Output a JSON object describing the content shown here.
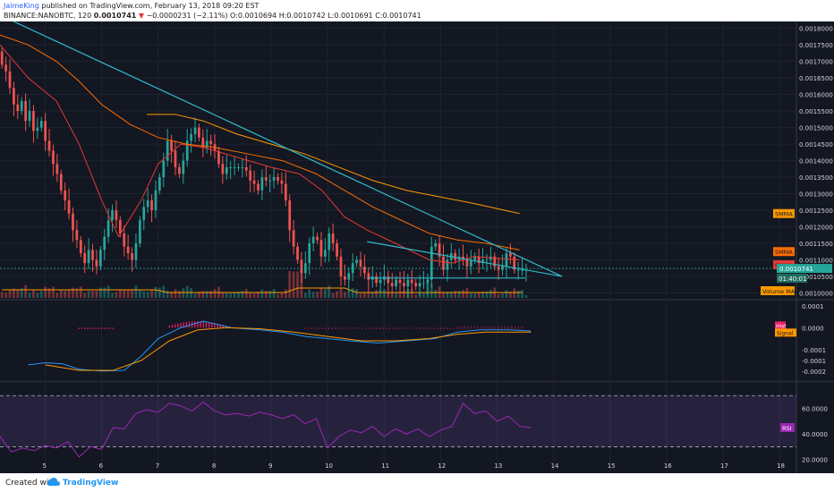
{
  "header": {
    "author": "JaimeKing",
    "published": "published on TradingView.com, February 13, 2018 09:20 EST",
    "symbol": "BINANCE:NANOBTC, 120",
    "last": "0.0010741",
    "arrow": "▼",
    "change": "−0.0000231 (−2.11%)",
    "ohlc_o": "O:0.0010694",
    "ohlc_h": "H:0.0010742",
    "ohlc_l": "L:0.0010691",
    "ohlc_c": "C:0.0010741"
  },
  "footer": {
    "created": "Created with",
    "brand": "TradingView",
    "logo_icon": "cloud-icon"
  },
  "colors": {
    "bg": "#131722",
    "up": "#26a69a",
    "down": "#ef5350",
    "trend": "#31b8c8",
    "smma_fast": "#e53935",
    "smma_mid": "#ff6d00",
    "smma_slow": "#ff9800",
    "macd": "#2196f3",
    "signal": "#ff9800",
    "hist": "#e91e63",
    "rsi": "#9c27b0"
  },
  "chart_data": [
    {
      "type": "candlestick",
      "panel": "price",
      "price_labels": [
        "0.0018000",
        "0.0017500",
        "0.0017000",
        "0.0016500",
        "0.0016000",
        "0.0015500",
        "0.0015000",
        "0.0014500",
        "0.0014000",
        "0.0013500",
        "0.0013000",
        "0.0012500",
        "0.0012000",
        "0.0011500",
        "0.0011000",
        "0.0010500",
        "0.0010000"
      ],
      "x_labels": [
        "5",
        "6",
        "7",
        "8",
        "9",
        "10",
        "11",
        "12",
        "13",
        "14",
        "15",
        "16",
        "17",
        "18"
      ],
      "x_label_pos": [
        5,
        6,
        7,
        8,
        9,
        10,
        11,
        12,
        13,
        14,
        15,
        16,
        17,
        18
      ],
      "last_price_label": "0.0010741",
      "countdown_label": "01:40:01",
      "indicator_labels": [
        {
          "text": "SMMA",
          "price": 0.00124,
          "color": "#ff9800"
        },
        {
          "text": "SMMA",
          "price": 0.001125,
          "color": "#ff6d00"
        },
        {
          "text": "SMMA",
          "price": 0.001085,
          "color": "#e53935"
        }
      ],
      "closes_start": 0.00173,
      "closes": [
        0.00169,
        0.00167,
        0.00162,
        0.00157,
        0.00155,
        0.00158,
        0.00152,
        0.00155,
        0.00149,
        0.0015,
        0.00152,
        0.00146,
        0.00143,
        0.00139,
        0.00136,
        0.00131,
        0.00128,
        0.00124,
        0.00119,
        0.00116,
        0.00112,
        0.00109,
        0.00113,
        0.0011,
        0.00108,
        0.00113,
        0.00117,
        0.00122,
        0.00125,
        0.00122,
        0.00118,
        0.00114,
        0.00112,
        0.0011,
        0.00115,
        0.00122,
        0.00126,
        0.00128,
        0.00125,
        0.00131,
        0.00135,
        0.0014,
        0.00146,
        0.00143,
        0.00138,
        0.00136,
        0.0014,
        0.00146,
        0.00148,
        0.0015,
        0.00147,
        0.00144,
        0.00146,
        0.00145,
        0.00143,
        0.00139,
        0.00136,
        0.00138,
        0.00138,
        0.00138,
        0.00138,
        0.00138,
        0.00137,
        0.00134,
        0.00133,
        0.00131,
        0.00135,
        0.00134,
        0.00134,
        0.00135,
        0.00134,
        0.00133,
        0.00128,
        0.00119,
        0.00114,
        0.0011,
        0.00106,
        0.00109,
        0.00115,
        0.00117,
        0.00116,
        0.00111,
        0.00113,
        0.00118,
        0.00115,
        0.00111,
        0.00105,
        0.00104,
        0.00106,
        0.00109,
        0.0011,
        0.00108,
        0.00106,
        0.00104,
        0.00105,
        0.00103,
        0.00104,
        0.00105,
        0.00103,
        0.00102,
        0.00104,
        0.00103,
        0.00102,
        0.00104,
        0.00103,
        0.00102,
        0.00103,
        0.00103,
        0.00104,
        0.00114,
        0.00115,
        0.00111,
        0.00107,
        0.0011,
        0.00112,
        0.0011,
        0.00111,
        0.0011,
        0.00108,
        0.0011,
        0.00111,
        0.00109,
        0.0011,
        0.0011,
        0.00111,
        0.00108,
        0.00107,
        0.00108,
        0.00112,
        0.00111,
        0.00107,
        0.00107,
        0.00107,
        0.00107
      ],
      "trendlines": [
        {
          "x1": 4.2,
          "y1": 0.00184,
          "x2": 14.15,
          "y2": 0.00105
        },
        {
          "x1": 10.7,
          "y1": 0.001155,
          "x2": 14.15,
          "y2": 0.00105
        },
        {
          "x1": 10.7,
          "y1": 0.001045,
          "x2": 13.5,
          "y2": 0.001045
        }
      ],
      "smma_fast_pts": [
        [
          4.2,
          0.00175
        ],
        [
          4.7,
          0.00165
        ],
        [
          5.2,
          0.00158
        ],
        [
          5.6,
          0.00145
        ],
        [
          6.0,
          0.00128
        ],
        [
          6.3,
          0.00117
        ],
        [
          6.7,
          0.00128
        ],
        [
          7.0,
          0.00139
        ],
        [
          7.4,
          0.00145
        ],
        [
          7.8,
          0.00144
        ],
        [
          8.4,
          0.00141
        ],
        [
          9.0,
          0.00138
        ],
        [
          9.5,
          0.00136
        ],
        [
          9.9,
          0.00131
        ],
        [
          10.3,
          0.00123
        ],
        [
          10.7,
          0.00119
        ],
        [
          11.2,
          0.00115
        ],
        [
          11.8,
          0.0011
        ],
        [
          12.2,
          0.00109
        ],
        [
          12.6,
          0.00111
        ],
        [
          13.4,
          0.0011
        ]
      ],
      "smma_mid_pts": [
        [
          4.2,
          0.00178
        ],
        [
          4.7,
          0.00175
        ],
        [
          5.2,
          0.0017
        ],
        [
          5.6,
          0.00164
        ],
        [
          6.0,
          0.00157
        ],
        [
          6.5,
          0.00151
        ],
        [
          7.0,
          0.00147
        ],
        [
          7.5,
          0.00145
        ],
        [
          8.0,
          0.00144
        ],
        [
          8.6,
          0.00142
        ],
        [
          9.2,
          0.0014
        ],
        [
          9.8,
          0.00136
        ],
        [
          10.3,
          0.00131
        ],
        [
          10.8,
          0.00126
        ],
        [
          11.3,
          0.00122
        ],
        [
          11.8,
          0.00118
        ],
        [
          12.3,
          0.00116
        ],
        [
          12.8,
          0.00115
        ],
        [
          13.4,
          0.00113
        ]
      ],
      "smma_slow_pts": [
        [
          6.8,
          0.00154
        ],
        [
          7.3,
          0.00154
        ],
        [
          7.8,
          0.00152
        ],
        [
          8.4,
          0.00148
        ],
        [
          9.0,
          0.00145
        ],
        [
          9.6,
          0.00142
        ],
        [
          10.2,
          0.00138
        ],
        [
          10.8,
          0.00134
        ],
        [
          11.4,
          0.00131
        ],
        [
          12.0,
          0.00129
        ],
        [
          12.6,
          0.00127
        ],
        [
          13.4,
          0.00124
        ]
      ],
      "ylim": [
        0.000985,
        0.00181
      ],
      "xlim": [
        4.2,
        18.3
      ]
    },
    {
      "type": "bar",
      "panel": "volume",
      "label": "Volume MA"
    },
    {
      "type": "line",
      "panel": "macd",
      "tick_labels": [
        "0.0001",
        "0.0000",
        "-0.0001",
        "-0.0001",
        "-0.0002"
      ],
      "tick_values": [
        0.0001,
        0.0,
        -0.0001,
        -0.00015,
        -0.0002
      ],
      "labels": [
        "Hist",
        "Signal"
      ],
      "macd_pts": [
        [
          4.7,
          -0.00017
        ],
        [
          5.0,
          -0.00016
        ],
        [
          5.3,
          -0.000165
        ],
        [
          5.6,
          -0.00019
        ],
        [
          6.0,
          -0.000198
        ],
        [
          6.4,
          -0.000195
        ],
        [
          6.7,
          -0.00013
        ],
        [
          7.0,
          -5e-05
        ],
        [
          7.4,
          0.0
        ],
        [
          7.8,
          3e-05
        ],
        [
          8.3,
          0.0
        ],
        [
          8.8,
          -1e-05
        ],
        [
          9.2,
          -2e-05
        ],
        [
          9.6,
          -4e-05
        ],
        [
          10.0,
          -5e-05
        ],
        [
          10.4,
          -6e-05
        ],
        [
          10.9,
          -7e-05
        ],
        [
          11.4,
          -6e-05
        ],
        [
          11.9,
          -5e-05
        ],
        [
          12.3,
          -2e-05
        ],
        [
          12.7,
          -1e-05
        ],
        [
          13.2,
          -1e-05
        ],
        [
          13.6,
          -1.5e-05
        ]
      ],
      "signal_pts": [
        [
          5.0,
          -0.00017
        ],
        [
          5.6,
          -0.000195
        ],
        [
          6.2,
          -0.000195
        ],
        [
          6.7,
          -0.00015
        ],
        [
          7.2,
          -6e-05
        ],
        [
          7.7,
          -1e-05
        ],
        [
          8.2,
          0.0
        ],
        [
          8.8,
          -5e-06
        ],
        [
          9.4,
          -2e-05
        ],
        [
          10.0,
          -4e-05
        ],
        [
          10.6,
          -6e-05
        ],
        [
          11.2,
          -6e-05
        ],
        [
          11.8,
          -5e-05
        ],
        [
          12.3,
          -3e-05
        ],
        [
          12.8,
          -2e-05
        ],
        [
          13.6,
          -2e-05
        ]
      ],
      "ylim": [
        -0.00024,
        0.00012
      ]
    },
    {
      "type": "line",
      "panel": "rsi",
      "tick_labels": [
        "60.0000",
        "40.0000",
        "20.0000"
      ],
      "tick_values": [
        60,
        40,
        20
      ],
      "label": "RSI",
      "upper": 70,
      "lower": 30,
      "rsi_pts": [
        [
          4.2,
          38
        ],
        [
          4.4,
          26
        ],
        [
          4.6,
          29
        ],
        [
          4.8,
          27
        ],
        [
          5.0,
          31
        ],
        [
          5.2,
          29
        ],
        [
          5.4,
          34
        ],
        [
          5.6,
          22
        ],
        [
          5.8,
          30
        ],
        [
          6.0,
          28
        ],
        [
          6.2,
          45
        ],
        [
          6.4,
          44
        ],
        [
          6.6,
          56
        ],
        [
          6.8,
          59
        ],
        [
          7.0,
          57
        ],
        [
          7.2,
          64
        ],
        [
          7.4,
          62
        ],
        [
          7.6,
          58
        ],
        [
          7.8,
          65
        ],
        [
          8.0,
          58
        ],
        [
          8.2,
          55
        ],
        [
          8.4,
          56
        ],
        [
          8.6,
          54
        ],
        [
          8.8,
          57
        ],
        [
          9.0,
          55
        ],
        [
          9.2,
          52
        ],
        [
          9.4,
          55
        ],
        [
          9.6,
          48
        ],
        [
          9.8,
          52
        ],
        [
          10.0,
          29
        ],
        [
          10.2,
          38
        ],
        [
          10.4,
          43
        ],
        [
          10.6,
          41
        ],
        [
          10.8,
          46
        ],
        [
          11.0,
          38
        ],
        [
          11.2,
          44
        ],
        [
          11.4,
          40
        ],
        [
          11.6,
          44
        ],
        [
          11.8,
          38
        ],
        [
          12.0,
          43
        ],
        [
          12.2,
          46
        ],
        [
          12.4,
          64
        ],
        [
          12.6,
          56
        ],
        [
          12.8,
          58
        ],
        [
          13.0,
          50
        ],
        [
          13.2,
          54
        ],
        [
          13.4,
          46
        ],
        [
          13.6,
          45
        ]
      ],
      "ylim": [
        10,
        80
      ]
    }
  ]
}
